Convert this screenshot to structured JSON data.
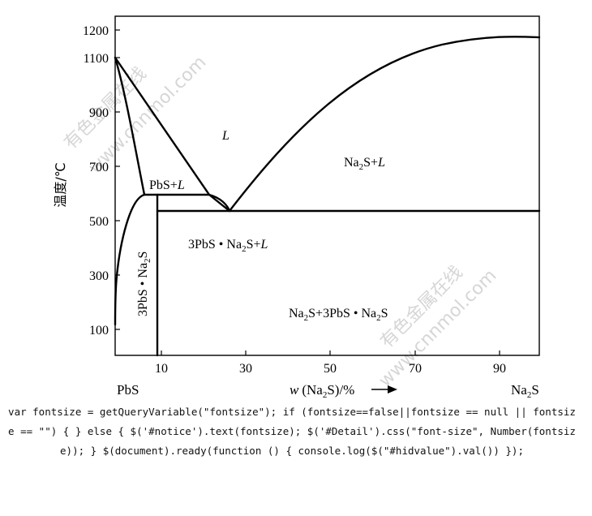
{
  "diagram": {
    "y_axis_title": "温度/℃",
    "y_ticks": [
      "1200",
      "1100",
      "900",
      "700",
      "500",
      "300",
      "100"
    ],
    "x_ticks": [
      "10",
      "30",
      "50",
      "70",
      "90"
    ],
    "x_axis_title": {
      "prefix": "w",
      "body": "(Na",
      "sub": "2",
      "suffix": "S)/%"
    },
    "endpoint_left": "PbS",
    "endpoint_right": {
      "base": "Na",
      "sub": "2",
      "tail": "S"
    },
    "regions": {
      "liquid": "L",
      "pbs_l": {
        "text": "PbS+",
        "italic": "L"
      },
      "na2s_l": {
        "a": "Na",
        "sub": "2",
        "b": "S+",
        "italic": "L"
      },
      "compound_l": {
        "a": "3PbS • Na",
        "sub": "2",
        "b": "S+",
        "italic": "L"
      },
      "compound_vertical": {
        "a": "3PbS • Na",
        "sub": "2",
        "b": "S"
      },
      "na2s_compound": {
        "a": "Na",
        "sub1": "2",
        "b": "S+3PbS • Na",
        "sub2": "2",
        "c": "S"
      }
    },
    "watermarks": [
      "有色金属在线",
      "www.cnnmol.com"
    ]
  },
  "code_snippet": "var fontsize = getQueryVariable(\"fontsize\"); if (fontsize==false||fontsize == null || fontsize == \"\") { } else { $('#notice').text(fontsize); $('#Detail').css(\"font-size\", Number(fontsize)); } $(document).ready(function () { console.log($(\"#hidvalue\").val()) });"
}
